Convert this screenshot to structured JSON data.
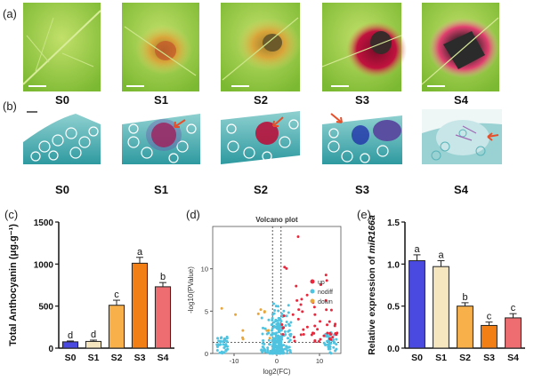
{
  "panels": {
    "a": "(a)",
    "b": "(b)",
    "c": "(c)",
    "d": "(d)",
    "e": "(e)"
  },
  "stages": [
    "S0",
    "S1",
    "S2",
    "S3",
    "S4"
  ],
  "colors": {
    "leaf_green": "#8cc83c",
    "section_teal": "#3ba6aa",
    "lesion_red": "#b8123c",
    "arrow_red": "#e5502b",
    "dark_blue": "#2233aa"
  },
  "chart_data": [
    {
      "id": "c",
      "type": "bar",
      "categories": [
        "S0",
        "S1",
        "S2",
        "S3",
        "S4"
      ],
      "values": [
        75,
        80,
        510,
        1010,
        730
      ],
      "errors": [
        10,
        15,
        60,
        70,
        50
      ],
      "letters": [
        "d",
        "d",
        "c",
        "a",
        "b"
      ],
      "colors": [
        "#4a4ae0",
        "#f6e6c0",
        "#f8b04a",
        "#f27e16",
        "#ee6d70"
      ],
      "ylabel": "Total Anthocyanin (μg.g⁻¹)",
      "ylim": [
        0,
        1500
      ],
      "yticks": [
        0,
        500,
        1000,
        1500
      ]
    },
    {
      "id": "d",
      "type": "scatter",
      "title": "Volcano plot",
      "xlabel": "log2(FC)",
      "ylabel": "-log10(PValue)",
      "xlim": [
        -15,
        15
      ],
      "ylim": [
        0,
        15
      ],
      "xticks": [
        -10,
        0,
        10
      ],
      "yticks": [
        0,
        5,
        10
      ],
      "legend": [
        {
          "name": "up",
          "color": "#e8283c"
        },
        {
          "name": "nodiff",
          "color": "#4fc3e0"
        },
        {
          "name": "down",
          "color": "#e8a73c"
        }
      ],
      "thresholds": {
        "x": [
          -1,
          1
        ],
        "y": 1.3
      }
    },
    {
      "id": "e",
      "type": "bar",
      "categories": [
        "S0",
        "S1",
        "S2",
        "S3",
        "S4"
      ],
      "values": [
        1.04,
        0.97,
        0.5,
        0.27,
        0.36
      ],
      "errors": [
        0.07,
        0.07,
        0.04,
        0.04,
        0.05
      ],
      "letters": [
        "a",
        "a",
        "b",
        "c",
        "c"
      ],
      "colors": [
        "#4a4ae0",
        "#f6e6c0",
        "#f8b04a",
        "#f27e16",
        "#ee6d70"
      ],
      "ylabel_prefix": "Relative expression of ",
      "ylabel_gene": "miR166a",
      "ylim": [
        0,
        1.5
      ],
      "yticks": [
        "0.0",
        "0.5",
        "1.0",
        "1.5"
      ]
    }
  ]
}
